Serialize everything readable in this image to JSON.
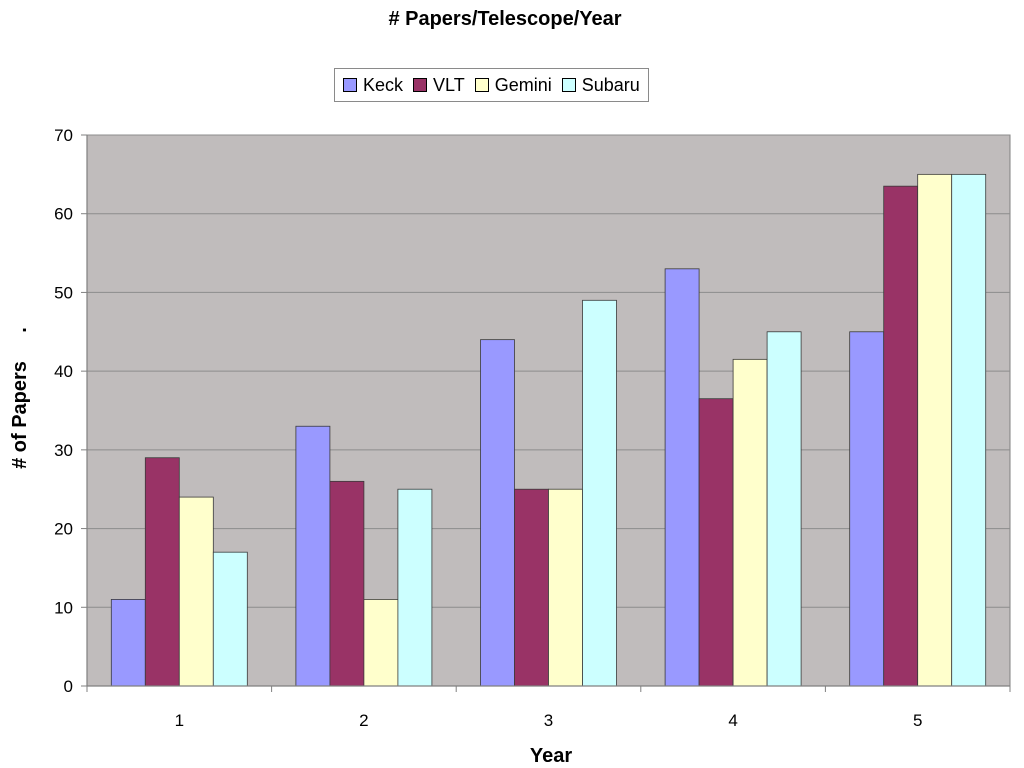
{
  "chart_data": {
    "type": "bar",
    "title": "# Papers/Telescope/Year",
    "xlabel": "Year",
    "ylabel": "# of Papers",
    "ylabel_dot": ".",
    "categories": [
      "1",
      "2",
      "3",
      "4",
      "5"
    ],
    "ylim": [
      0,
      70
    ],
    "yticks": [
      "0",
      "10",
      "20",
      "30",
      "40",
      "50",
      "60",
      "70"
    ],
    "grid": true,
    "legend_position": "top-center",
    "plot_background": "#c0bcbc",
    "series": [
      {
        "name": "Keck",
        "color": "#9999ff",
        "values": [
          11,
          33,
          44,
          53,
          45
        ]
      },
      {
        "name": "VLT",
        "color": "#993366",
        "values": [
          29,
          26,
          25,
          36.5,
          63.5
        ]
      },
      {
        "name": "Gemini",
        "color": "#ffffcc",
        "values": [
          24,
          11,
          25,
          41.5,
          65
        ]
      },
      {
        "name": "Subaru",
        "color": "#ccffff",
        "values": [
          17,
          25,
          49,
          45,
          65
        ]
      }
    ]
  }
}
